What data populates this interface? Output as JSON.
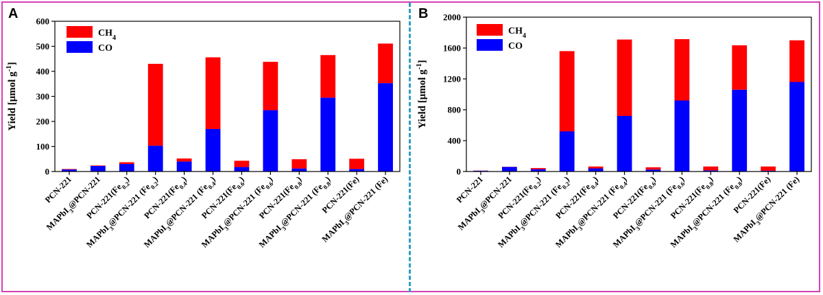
{
  "colors": {
    "ch4": "#ff0000",
    "co": "#0000ff",
    "frame": "#d63fb4",
    "divider": "#2a9fc4"
  },
  "categories": [
    "PCN-221",
    "MAPbI3@PCN-221",
    "PCN-221(Fe0.2)",
    "MAPbI3@PCN-221 (Fe0.2)",
    "PCN-221(Fe0.4)",
    "MAPbI3@PCN-221 (Fe0.4)",
    "PCN-221(Fe0.6)",
    "MAPbI3@PCN-221 (Fe0.6)",
    "PCN-221(Fe0.8)",
    "MAPbI3@PCN-221 (Fe0.8)",
    "PCN-221(Fe)",
    "MAPbI3@PCN-221 (Fe)"
  ],
  "chart_data": [
    {
      "panel": "A",
      "type": "bar",
      "stacked": true,
      "ylabel": "Yield [μmol g-1]",
      "ylim": [
        0,
        600
      ],
      "yticks": [
        0,
        100,
        200,
        300,
        400,
        500,
        600
      ],
      "legend": "top-left",
      "series": [
        {
          "name": "CO",
          "values": [
            8,
            22,
            30,
            103,
            40,
            170,
            18,
            245,
            12,
            295,
            10,
            353
          ]
        },
        {
          "name": "CH4",
          "values": [
            2,
            2,
            7,
            327,
            12,
            286,
            25,
            193,
            37,
            170,
            41,
            158
          ]
        }
      ]
    },
    {
      "panel": "B",
      "type": "bar",
      "stacked": true,
      "ylabel": "Yield [μmol g-1]",
      "ylim": [
        0,
        2000
      ],
      "yticks": [
        0,
        400,
        800,
        1200,
        1600,
        2000
      ],
      "legend": "top-left",
      "series": [
        {
          "name": "CO",
          "values": [
            10,
            60,
            30,
            520,
            40,
            720,
            25,
            920,
            15,
            1060,
            10,
            1160
          ]
        },
        {
          "name": "CH4",
          "values": [
            2,
            2,
            15,
            1040,
            25,
            990,
            30,
            795,
            50,
            575,
            55,
            540
          ]
        }
      ]
    }
  ]
}
